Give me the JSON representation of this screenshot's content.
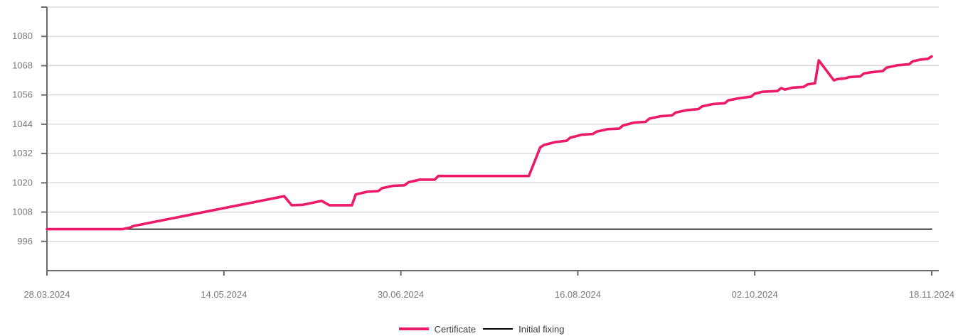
{
  "chart_data": {
    "type": "line",
    "title": "",
    "xlabel": "",
    "ylabel": "",
    "x_ticks": [
      "28.03.2024",
      "14.05.2024",
      "30.06.2024",
      "16.08.2024",
      "02.10.2024",
      "18.11.2024"
    ],
    "y_ticks": [
      996,
      1008,
      1020,
      1032,
      1044,
      1056,
      1068,
      1080
    ],
    "xlim": [
      "2024-03-28",
      "2024-11-18"
    ],
    "ylim": [
      984,
      1092
    ],
    "grid": "horizontal",
    "legend_position": "bottom-center",
    "series": [
      {
        "name": "Certificate",
        "color": "#ec1a68",
        "points": [
          [
            "2024-03-28",
            1001
          ],
          [
            "2024-04-17",
            1001
          ],
          [
            "2024-04-19",
            1001.6
          ],
          [
            "2024-04-20",
            1002.3
          ],
          [
            "2024-05-30",
            1014.5
          ],
          [
            "2024-06-01",
            1010.8
          ],
          [
            "2024-06-04",
            1011
          ],
          [
            "2024-06-09",
            1012.6
          ],
          [
            "2024-06-11",
            1010.8
          ],
          [
            "2024-06-17",
            1010.8
          ],
          [
            "2024-06-18",
            1015.2
          ],
          [
            "2024-06-21",
            1016.3
          ],
          [
            "2024-06-24",
            1016.6
          ],
          [
            "2024-06-25",
            1017.8
          ],
          [
            "2024-06-28",
            1018.8
          ],
          [
            "2024-07-01",
            1019
          ],
          [
            "2024-07-02",
            1020.2
          ],
          [
            "2024-07-05",
            1021.3
          ],
          [
            "2024-07-09",
            1021.3
          ],
          [
            "2024-07-10",
            1022.8
          ],
          [
            "2024-08-03",
            1022.8
          ],
          [
            "2024-08-06",
            1034.5
          ],
          [
            "2024-08-07",
            1035.5
          ],
          [
            "2024-08-10",
            1036.7
          ],
          [
            "2024-08-13",
            1037.2
          ],
          [
            "2024-08-14",
            1038.5
          ],
          [
            "2024-08-17",
            1039.7
          ],
          [
            "2024-08-20",
            1040
          ],
          [
            "2024-08-21",
            1041
          ],
          [
            "2024-08-24",
            1042
          ],
          [
            "2024-08-27",
            1042.2
          ],
          [
            "2024-08-28",
            1043.5
          ],
          [
            "2024-08-31",
            1044.7
          ],
          [
            "2024-09-03",
            1045
          ],
          [
            "2024-09-04",
            1046.3
          ],
          [
            "2024-09-07",
            1047.3
          ],
          [
            "2024-09-10",
            1047.6
          ],
          [
            "2024-09-11",
            1048.8
          ],
          [
            "2024-09-14",
            1049.8
          ],
          [
            "2024-09-17",
            1050.2
          ],
          [
            "2024-09-18",
            1051.3
          ],
          [
            "2024-09-21",
            1052.3
          ],
          [
            "2024-09-24",
            1052.6
          ],
          [
            "2024-09-25",
            1053.8
          ],
          [
            "2024-09-28",
            1054.7
          ],
          [
            "2024-10-01",
            1055.3
          ],
          [
            "2024-10-02",
            1056.5
          ],
          [
            "2024-10-04",
            1057.3
          ],
          [
            "2024-10-08",
            1057.6
          ],
          [
            "2024-10-09",
            1058.8
          ],
          [
            "2024-10-10",
            1058.2
          ],
          [
            "2024-10-12",
            1059
          ],
          [
            "2024-10-15",
            1059.3
          ],
          [
            "2024-10-16",
            1060.3
          ],
          [
            "2024-10-18",
            1060.8
          ],
          [
            "2024-10-19",
            1070.2
          ],
          [
            "2024-10-23",
            1062
          ],
          [
            "2024-10-24",
            1062.5
          ],
          [
            "2024-10-26",
            1062.8
          ],
          [
            "2024-10-27",
            1063.3
          ],
          [
            "2024-10-30",
            1063.6
          ],
          [
            "2024-10-31",
            1064.8
          ],
          [
            "2024-11-02",
            1065.3
          ],
          [
            "2024-11-05",
            1065.8
          ],
          [
            "2024-11-06",
            1067.2
          ],
          [
            "2024-11-09",
            1068.2
          ],
          [
            "2024-11-12",
            1068.6
          ],
          [
            "2024-11-13",
            1069.8
          ],
          [
            "2024-11-15",
            1070.5
          ],
          [
            "2024-11-17",
            1070.8
          ],
          [
            "2024-11-18",
            1071.8
          ]
        ]
      },
      {
        "name": "Initial fixing",
        "color": "#000000",
        "points": [
          [
            "2024-03-28",
            1001
          ],
          [
            "2024-11-18",
            1001
          ]
        ]
      }
    ]
  }
}
